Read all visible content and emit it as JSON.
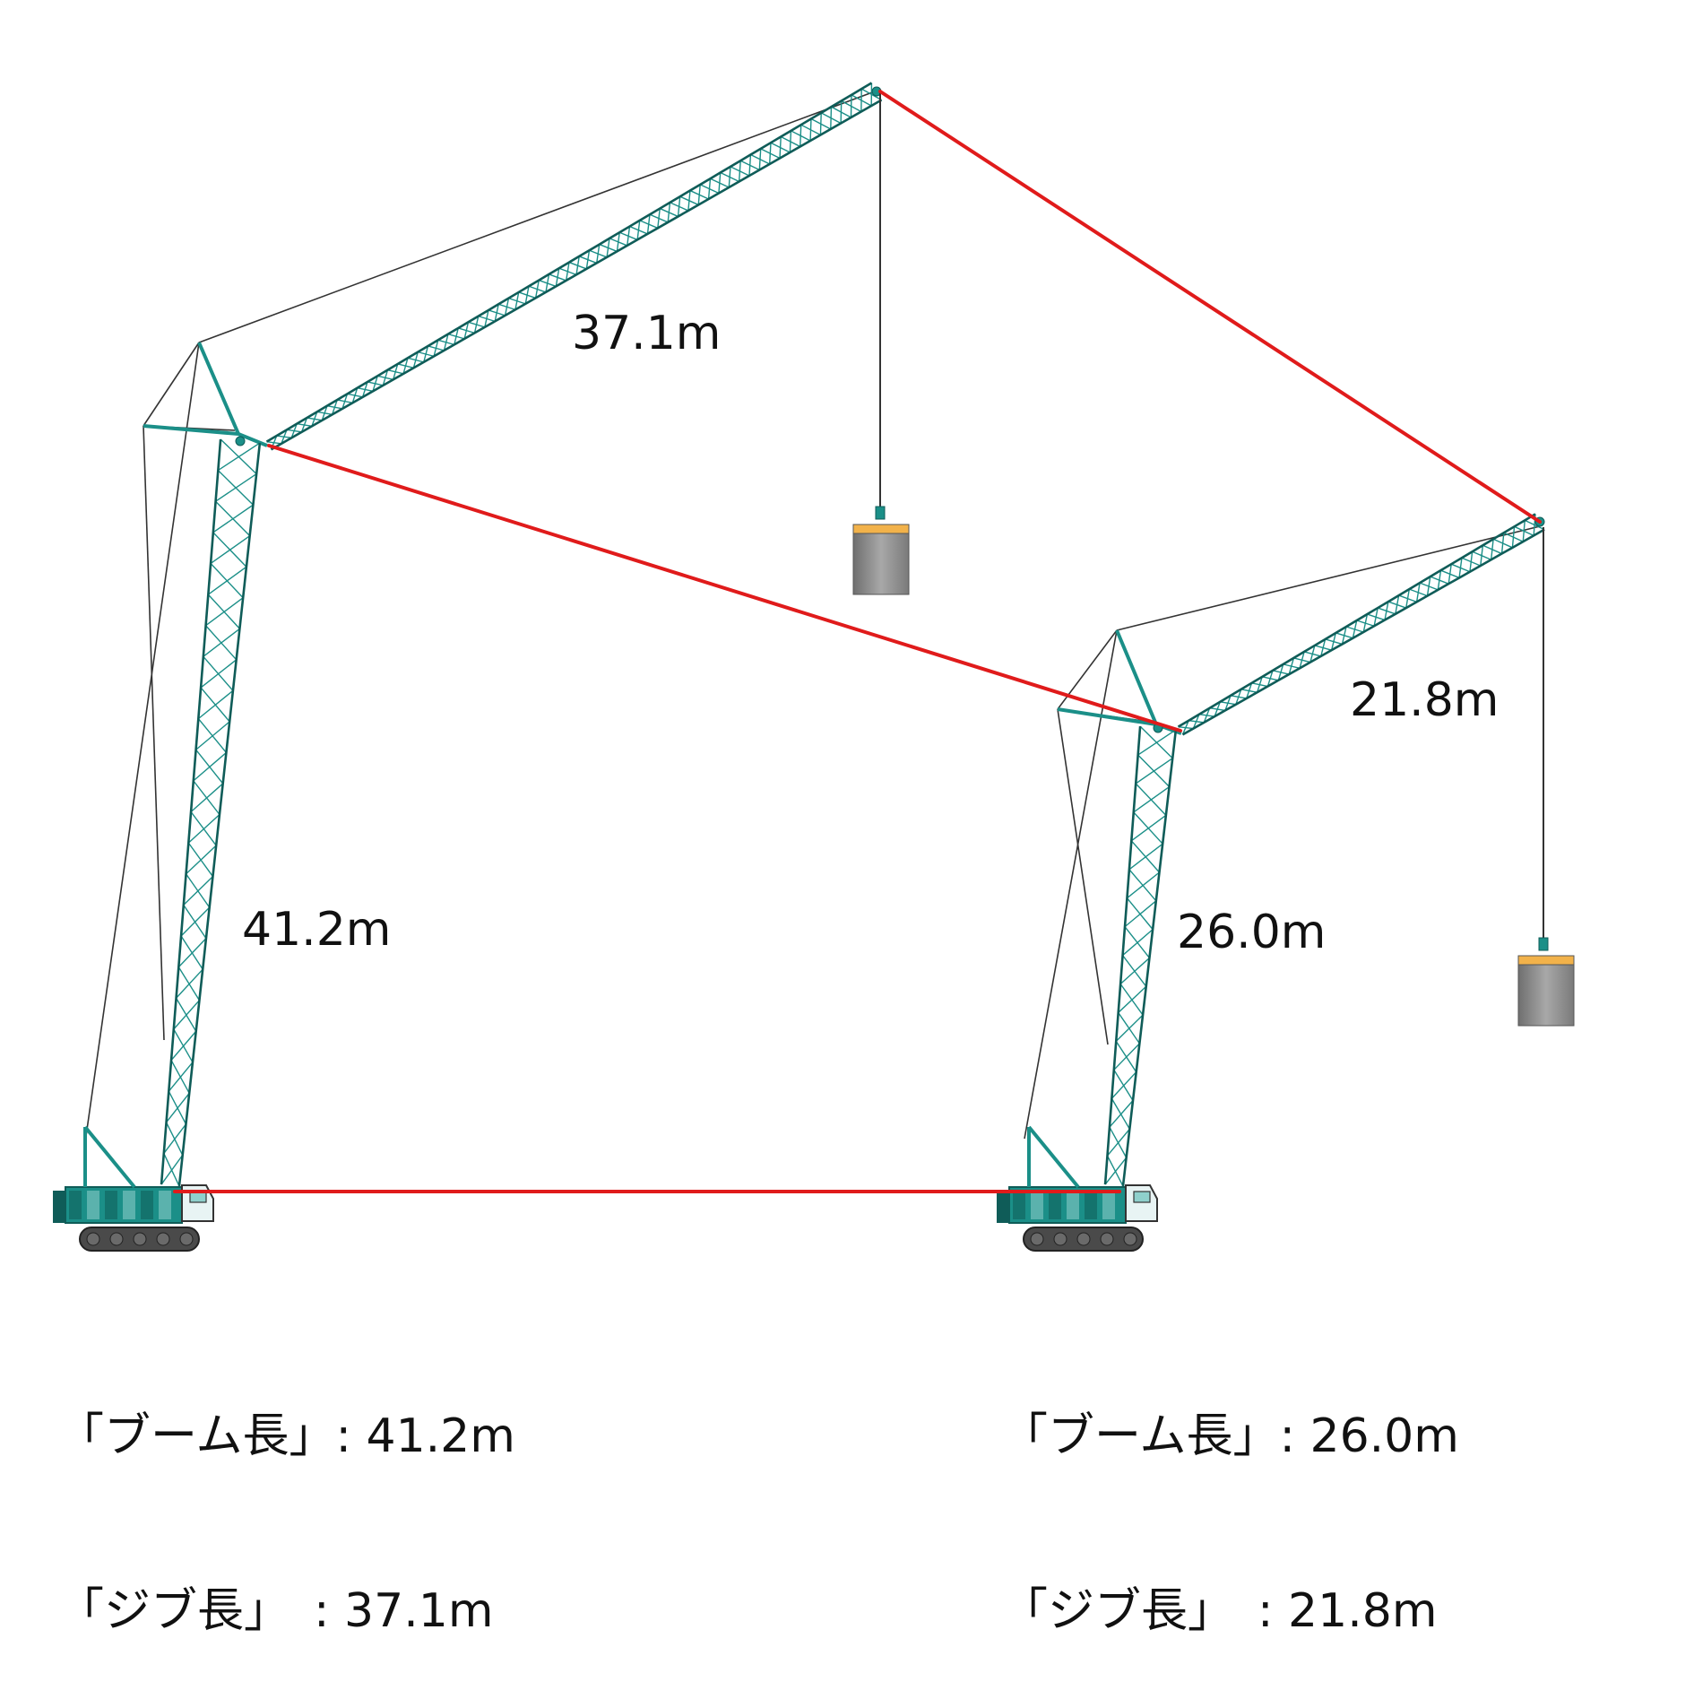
{
  "colors": {
    "steel": "#1b8f88",
    "steel_dark": "#0f5c58",
    "steel_light": "#8fd0cc",
    "rope": "#333333",
    "red_line": "#e01b1b",
    "load_top": "#f2b24a",
    "load_body": "#9a9a9a",
    "track": "#4a4a4a"
  },
  "cranes": [
    {
      "boom_label": "41.2m",
      "jib_label": "37.1m",
      "spec_boom": "「ブーム長」: 41.2m",
      "spec_jib": "「ジブ長」　: 37.1m"
    },
    {
      "boom_label": "26.0m",
      "jib_label": "21.8m",
      "spec_boom": "「ブーム長」: 26.0m",
      "spec_jib": "「ジブ長」　: 21.8m"
    }
  ]
}
